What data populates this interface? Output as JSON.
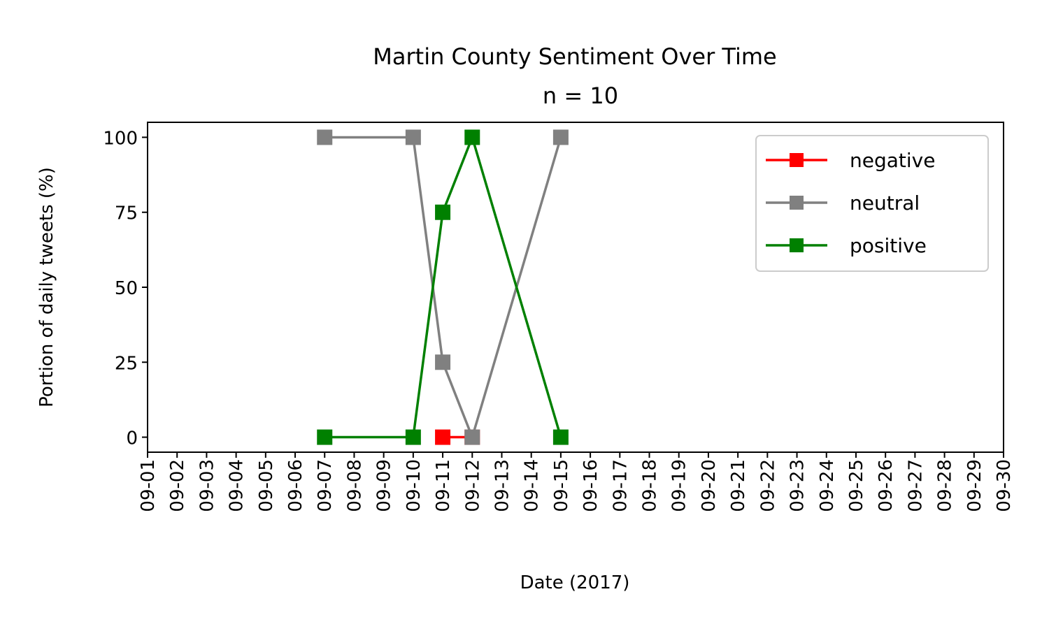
{
  "chart_data": {
    "type": "line",
    "title": "Martin County Sentiment Over Time",
    "subtitle": "n = 10",
    "xlabel": "Date (2017)",
    "ylabel": "Portion of daily tweets (%)",
    "x_ticks": [
      "09-01",
      "09-02",
      "09-03",
      "09-04",
      "09-05",
      "09-06",
      "09-07",
      "09-08",
      "09-09",
      "09-10",
      "09-11",
      "09-12",
      "09-13",
      "09-14",
      "09-15",
      "09-16",
      "09-17",
      "09-18",
      "09-19",
      "09-20",
      "09-21",
      "09-22",
      "09-23",
      "09-24",
      "09-25",
      "09-26",
      "09-27",
      "09-28",
      "09-29",
      "09-30"
    ],
    "xlim": [
      "09-01",
      "09-30"
    ],
    "y_ticks": [
      0,
      25,
      50,
      75,
      100
    ],
    "ylim": [
      -5,
      105
    ],
    "grid": false,
    "legend_position": "top-right",
    "series": [
      {
        "name": "negative",
        "color": "#ff0000",
        "points": [
          {
            "x": "09-07",
            "y": null
          },
          {
            "x": "09-10",
            "y": null
          },
          {
            "x": "09-11",
            "y": 0
          },
          {
            "x": "09-12",
            "y": 0
          },
          {
            "x": "09-15",
            "y": null
          }
        ]
      },
      {
        "name": "neutral",
        "color": "#808080",
        "points": [
          {
            "x": "09-07",
            "y": 100
          },
          {
            "x": "09-10",
            "y": 100
          },
          {
            "x": "09-11",
            "y": 25
          },
          {
            "x": "09-12",
            "y": 0
          },
          {
            "x": "09-15",
            "y": 100
          }
        ]
      },
      {
        "name": "positive",
        "color": "#008000",
        "points": [
          {
            "x": "09-07",
            "y": 0
          },
          {
            "x": "09-10",
            "y": 0
          },
          {
            "x": "09-11",
            "y": 75
          },
          {
            "x": "09-12",
            "y": 100
          },
          {
            "x": "09-15",
            "y": 0
          }
        ]
      }
    ]
  }
}
